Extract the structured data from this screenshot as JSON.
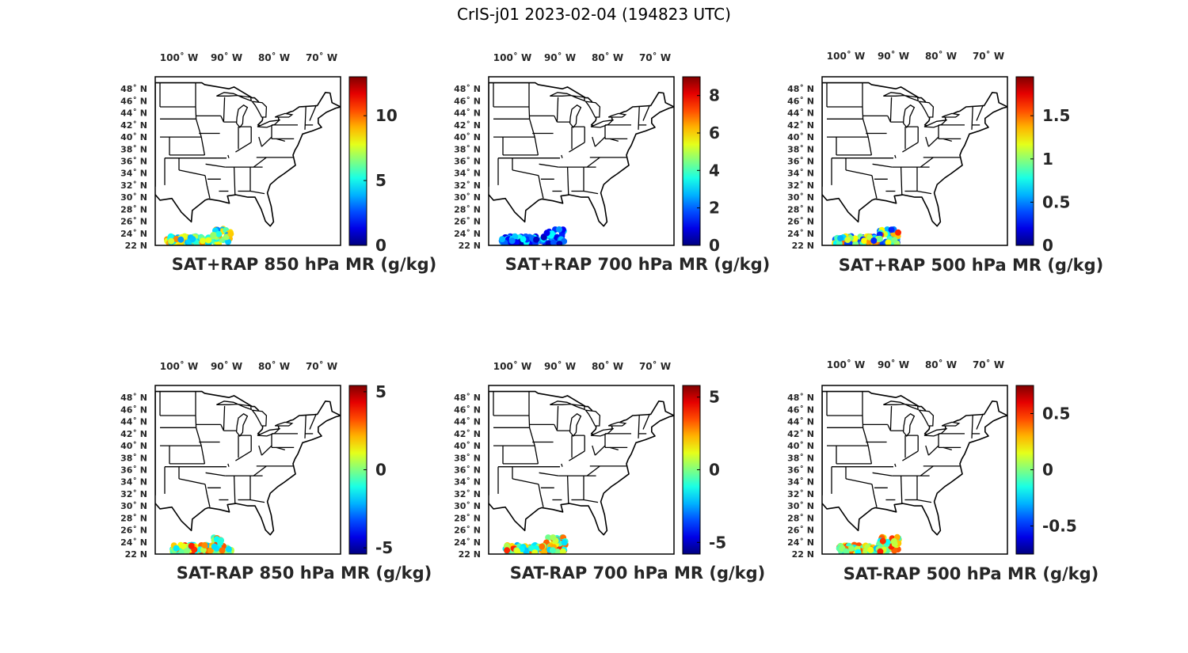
{
  "figure": {
    "title": "CrIS-j01 2023-02-04 (194823 UTC)"
  },
  "map": {
    "lon_range": [
      -105,
      -66
    ],
    "lat_range": [
      22,
      50
    ],
    "lon_ticks": [
      "100˚ W",
      "90˚ W",
      "80˚ W",
      "70˚ W"
    ],
    "lon_tick_values": [
      -100,
      -90,
      -80,
      -70
    ],
    "lat_ticks": [
      "48˚ N",
      "46˚ N",
      "44˚ N",
      "42˚ N",
      "40˚ N",
      "38˚ N",
      "36˚ N",
      "34˚ N",
      "32˚ N",
      "30˚ N",
      "28˚ N",
      "26˚ N",
      "24˚ N",
      "22 N"
    ],
    "lat_tick_values": [
      48,
      46,
      44,
      42,
      40,
      38,
      36,
      34,
      32,
      30,
      28,
      26,
      24,
      22
    ]
  },
  "colormap": "jet",
  "panels": [
    {
      "title": "SAT+RAP 850 hPa MR (g/kg)",
      "clim": [
        0,
        13
      ],
      "cb_ticks": [
        "0",
        "5",
        "10"
      ],
      "cb_values": [
        0,
        5,
        10
      ]
    },
    {
      "title": "SAT+RAP 700 hPa MR (g/kg)",
      "clim": [
        0,
        9
      ],
      "cb_ticks": [
        "0",
        "2",
        "4",
        "6",
        "8"
      ],
      "cb_values": [
        0,
        2,
        4,
        6,
        8
      ]
    },
    {
      "title": "SAT+RAP 500 hPa MR (g/kg)",
      "clim": [
        0,
        1.95
      ],
      "cb_ticks": [
        "0",
        "0.5",
        "1",
        "1.5"
      ],
      "cb_values": [
        0,
        0.5,
        1,
        1.5
      ]
    },
    {
      "title": "SAT-RAP 850 hPa MR (g/kg)",
      "clim": [
        -5.4,
        5.4
      ],
      "cb_ticks": [
        "-5",
        "0",
        "5"
      ],
      "cb_values": [
        -5,
        0,
        5
      ]
    },
    {
      "title": "SAT-RAP 700 hPa MR (g/kg)",
      "clim": [
        -5.8,
        5.8
      ],
      "cb_ticks": [
        "-5",
        "0",
        "5"
      ],
      "cb_values": [
        -5,
        0,
        5
      ]
    },
    {
      "title": "SAT-RAP 500 hPa MR (g/kg)",
      "clim": [
        -0.75,
        0.75
      ],
      "cb_ticks": [
        "-0.5",
        "0",
        "0.5"
      ],
      "cb_values": [
        -0.5,
        0,
        0.5
      ]
    }
  ]
}
